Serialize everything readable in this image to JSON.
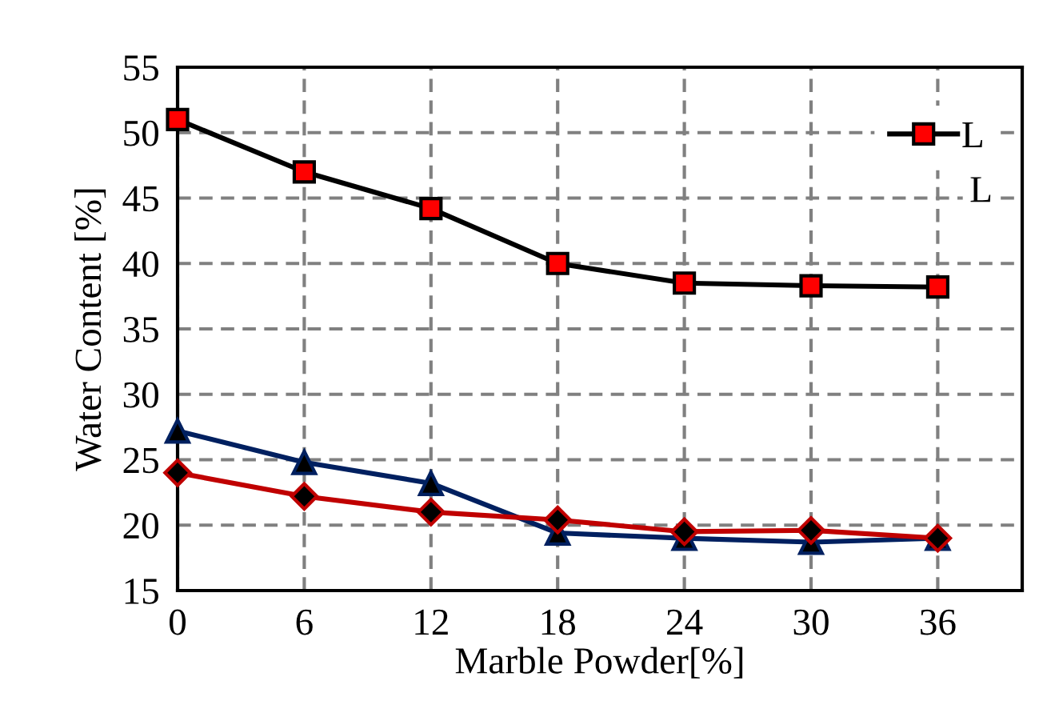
{
  "chart_data": {
    "type": "line",
    "xlabel": "Marble Powder[%]",
    "ylabel": "Water Content [%]",
    "x": [
      0,
      6,
      12,
      18,
      24,
      30,
      36
    ],
    "series": [
      {
        "name": "L",
        "color": "#000000",
        "marker": "square",
        "values": [
          51,
          47,
          44.2,
          40,
          38.5,
          38.3,
          38.2
        ]
      },
      {
        "color": "#002060",
        "marker": "triangle",
        "values": [
          27.2,
          24.8,
          23.2,
          19.4,
          19.0,
          18.7,
          19.0
        ]
      },
      {
        "color": "#c00000",
        "marker": "diamond",
        "values": [
          24,
          22.2,
          21.0,
          20.4,
          19.5,
          19.6,
          19.0
        ]
      }
    ],
    "annotations": [
      "L"
    ],
    "xlim": [
      0,
      40
    ],
    "xticks": [
      0,
      6,
      12,
      18,
      24,
      30,
      36
    ],
    "ylim": [
      15,
      55
    ],
    "yticks": [
      15,
      20,
      25,
      30,
      35,
      40,
      45,
      50,
      55
    ],
    "grid": true,
    "legend": "top right"
  }
}
